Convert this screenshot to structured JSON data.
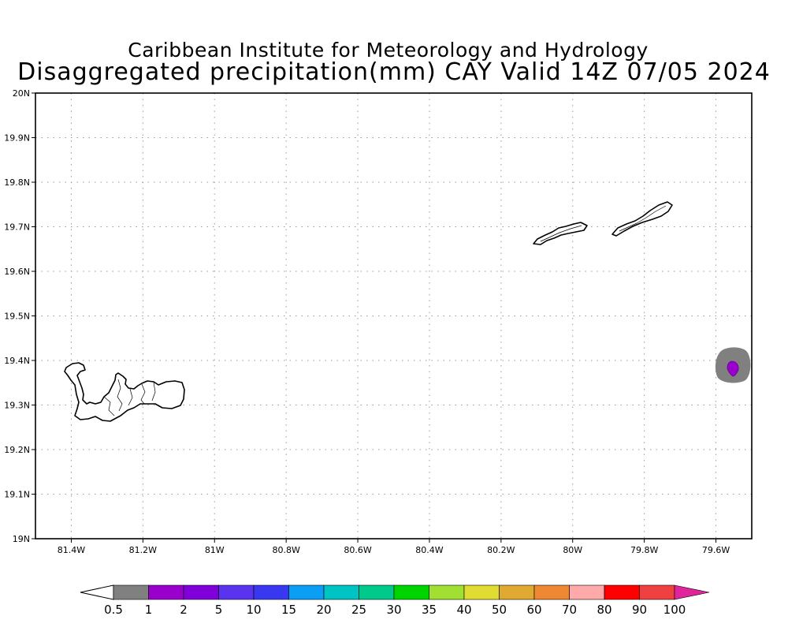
{
  "header": {
    "institute": "Caribbean Institute for Meteorology and Hydrology",
    "product": "Disaggregated precipitation(mm) CAY Valid 14Z 07/05 2024"
  },
  "map": {
    "lon_range": [
      -81.5,
      -79.5
    ],
    "lat_range": [
      19.0,
      20.0
    ],
    "lon_ticks": [
      {
        "value": -81.4,
        "label": "81.4W"
      },
      {
        "value": -81.2,
        "label": "81.2W"
      },
      {
        "value": -81.0,
        "label": "81W"
      },
      {
        "value": -80.8,
        "label": "80.8W"
      },
      {
        "value": -80.6,
        "label": "80.6W"
      },
      {
        "value": -80.4,
        "label": "80.4W"
      },
      {
        "value": -80.2,
        "label": "80.2W"
      },
      {
        "value": -80.0,
        "label": "80W"
      },
      {
        "value": -79.8,
        "label": "79.8W"
      },
      {
        "value": -79.6,
        "label": "79.6W"
      }
    ],
    "lat_ticks": [
      {
        "value": 19.0,
        "label": "19N"
      },
      {
        "value": 19.1,
        "label": "19.1N"
      },
      {
        "value": 19.2,
        "label": "19.2N"
      },
      {
        "value": 19.3,
        "label": "19.3N"
      },
      {
        "value": 19.4,
        "label": "19.4N"
      },
      {
        "value": 19.5,
        "label": "19.5N"
      },
      {
        "value": 19.6,
        "label": "19.6N"
      },
      {
        "value": 19.7,
        "label": "19.7N"
      },
      {
        "value": 19.8,
        "label": "19.8N"
      },
      {
        "value": 19.9,
        "label": "19.9N"
      },
      {
        "value": 20.0,
        "label": "20N"
      }
    ],
    "grid": "dotted",
    "precip_cell": {
      "lon": -79.555,
      "lat": 19.385,
      "outer_class": "0.5-1",
      "inner_class": "2-5"
    }
  },
  "colorbar": {
    "labels": [
      "0.5",
      "1",
      "2",
      "5",
      "10",
      "15",
      "20",
      "25",
      "30",
      "35",
      "40",
      "50",
      "60",
      "70",
      "80",
      "90",
      "100"
    ],
    "colors": [
      "#808080",
      "#9900cc",
      "#7f00d9",
      "#5a33ee",
      "#3838f0",
      "#0b9ef4",
      "#00c3c3",
      "#00c98c",
      "#00d400",
      "#a1e032",
      "#e0dc32",
      "#e0aa32",
      "#ef8832",
      "#ffaaaa",
      "#ff0000",
      "#f04040"
    ],
    "under_color": "#ffffff",
    "over_color": "#e0259a"
  }
}
